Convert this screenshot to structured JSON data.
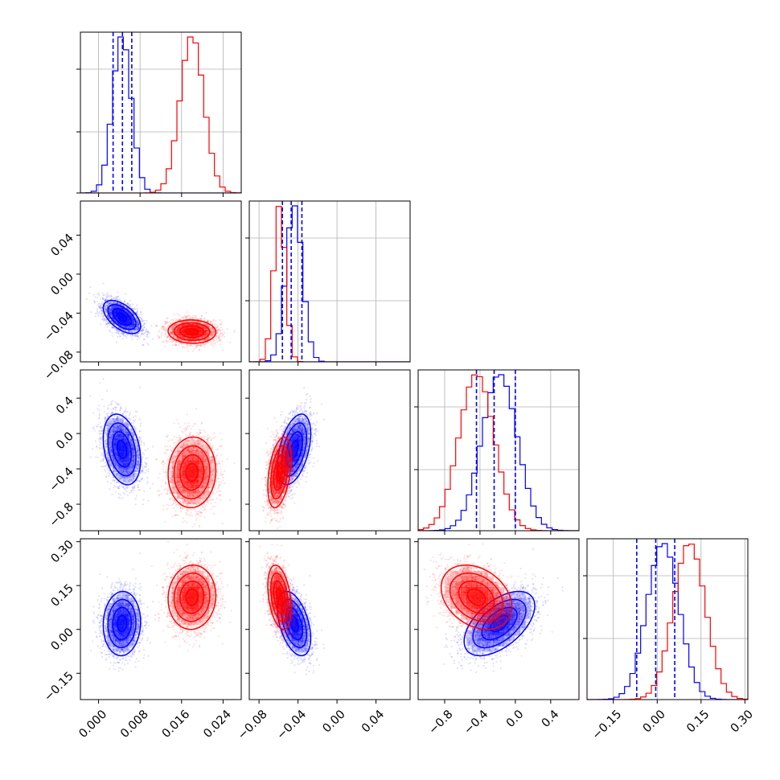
{
  "chart_data": {
    "type": "corner",
    "title": "",
    "series": [
      {
        "name": "",
        "color": "#0000ff",
        "params": [
          {
            "mean": 0.0045,
            "sd": 0.0018,
            "quantiles": [
              0.0028,
              0.0046,
              0.0064
            ]
          },
          {
            "mean": -0.044,
            "sd": 0.0085,
            "quantiles": [
              -0.056,
              -0.047,
              -0.036
            ]
          },
          {
            "mean": -0.18,
            "sd": 0.2,
            "quantiles": [
              -0.44,
              -0.24,
              0.0
            ]
          },
          {
            "mean": 0.02,
            "sd": 0.055,
            "quantiles": [
              -0.07,
              -0.005,
              0.06
            ]
          }
        ],
        "correlations": {
          "1-0": -0.55,
          "2-0": -0.3,
          "3-0": 0.05,
          "2-1": 0.45,
          "3-1": -0.45,
          "3-2": 0.55
        }
      },
      {
        "name": "",
        "color": "#ff0000",
        "params": [
          {
            "mean": 0.018,
            "sd": 0.0023
          },
          {
            "mean": -0.059,
            "sd": 0.006
          },
          {
            "mean": -0.44,
            "sd": 0.2
          },
          {
            "mean": 0.11,
            "sd": 0.055
          }
        ],
        "correlations": {
          "1-0": -0.05,
          "2-0": 0.05,
          "3-0": 0.05,
          "2-1": 0.4,
          "3-1": -0.35,
          "3-2": -0.3
        }
      }
    ],
    "ranges": [
      [
        -0.0035,
        0.0275
      ],
      [
        -0.09,
        0.075
      ],
      [
        -1.1,
        0.72
      ],
      [
        -0.24,
        0.31
      ]
    ],
    "ticks": [
      [
        0.0,
        0.008,
        0.016,
        0.024
      ],
      [
        -0.08,
        -0.04,
        0.0,
        0.04
      ],
      [
        -0.8,
        -0.4,
        0.0,
        0.4
      ],
      [
        -0.15,
        0.0,
        0.15,
        0.3
      ]
    ],
    "tick_labels": [
      [
        "0.000",
        "0.008",
        "0.016",
        "0.024"
      ],
      [
        "−0.08",
        "−0.04",
        "0.00",
        "0.04"
      ],
      [
        "−0.8",
        "−0.4",
        "0.0",
        "0.4"
      ],
      [
        "−0.15",
        "0.00",
        "0.15",
        "0.30"
      ]
    ],
    "y_tick_labels_left": [
      [],
      [
        "−0.08",
        "−0.04",
        "0.00",
        "0.04"
      ],
      [
        "−0.8",
        "−0.4",
        "0.0",
        "0.4"
      ],
      [
        "−0.15",
        "0.00",
        "0.15",
        "0.30"
      ]
    ],
    "y_tick_values_left": [
      [],
      [
        -0.08,
        -0.04,
        0.0,
        0.04
      ],
      [
        -0.8,
        -0.4,
        0.0,
        0.4
      ],
      [
        -0.15,
        0.0,
        0.15,
        0.3
      ]
    ],
    "grid": true,
    "quantile_lines_series": "blue",
    "legend": "none"
  }
}
